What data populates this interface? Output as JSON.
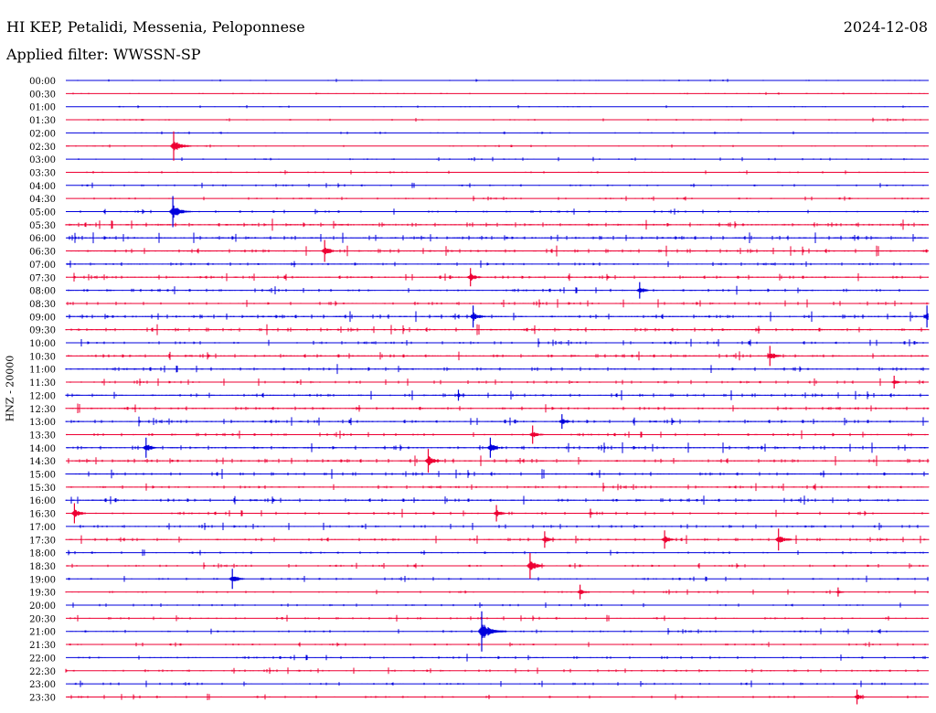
{
  "header": {
    "station": "HI KEP, Petalidi, Messenia, Peloponnese",
    "date": "2024-12-08",
    "filter": "Applied filter: WWSSN-SP"
  },
  "chart_data": {
    "type": "helicorder",
    "channel_label": "HNZ - 20000",
    "colors": [
      "#0000dd",
      "#ee0033"
    ],
    "rows": [
      "00:00",
      "00:30",
      "01:00",
      "01:30",
      "02:00",
      "02:30",
      "03:00",
      "03:30",
      "04:00",
      "04:30",
      "05:00",
      "05:30",
      "06:00",
      "06:30",
      "07:00",
      "07:30",
      "08:00",
      "08:30",
      "09:00",
      "09:30",
      "10:00",
      "10:30",
      "11:00",
      "11:30",
      "12:00",
      "12:30",
      "13:00",
      "13:30",
      "14:00",
      "14:30",
      "15:00",
      "15:30",
      "16:00",
      "16:30",
      "17:00",
      "17:30",
      "18:00",
      "18:30",
      "19:00",
      "19:30",
      "20:00",
      "20:30",
      "21:00",
      "21:30",
      "22:00",
      "22:30",
      "23:00",
      "23:30"
    ],
    "noise": [
      0.3,
      0.3,
      0.3,
      0.4,
      0.3,
      0.3,
      0.4,
      0.4,
      0.5,
      0.5,
      0.6,
      1.1,
      1.0,
      1.0,
      0.8,
      0.8,
      0.8,
      0.8,
      1.0,
      1.0,
      0.8,
      0.9,
      0.9,
      0.7,
      0.9,
      0.9,
      0.9,
      0.8,
      1.0,
      1.0,
      0.9,
      0.8,
      0.9,
      0.8,
      0.7,
      0.8,
      0.6,
      0.6,
      0.6,
      0.5,
      0.5,
      0.6,
      0.6,
      0.5,
      0.7,
      0.6,
      0.6,
      0.6
    ],
    "events": [
      {
        "row": 5,
        "t": 0.125,
        "amp": 16
      },
      {
        "row": 10,
        "t": 0.124,
        "amp": 17
      },
      {
        "row": 13,
        "t": 0.3,
        "amp": 12
      },
      {
        "row": 15,
        "t": 0.469,
        "amp": 10
      },
      {
        "row": 16,
        "t": 0.665,
        "amp": 9
      },
      {
        "row": 18,
        "t": 0.472,
        "amp": 12
      },
      {
        "row": 18,
        "t": 0.998,
        "amp": 12
      },
      {
        "row": 21,
        "t": 0.816,
        "amp": 11
      },
      {
        "row": 23,
        "t": 0.96,
        "amp": 7
      },
      {
        "row": 24,
        "t": 0.455,
        "amp": 6
      },
      {
        "row": 26,
        "t": 0.575,
        "amp": 8
      },
      {
        "row": 27,
        "t": 0.541,
        "amp": 10
      },
      {
        "row": 28,
        "t": 0.093,
        "amp": 11
      },
      {
        "row": 28,
        "t": 0.492,
        "amp": 11
      },
      {
        "row": 29,
        "t": 0.42,
        "amp": 13
      },
      {
        "row": 33,
        "t": 0.01,
        "amp": 11
      },
      {
        "row": 33,
        "t": 0.499,
        "amp": 9
      },
      {
        "row": 33,
        "t": 0.608,
        "amp": 5
      },
      {
        "row": 35,
        "t": 0.555,
        "amp": 9
      },
      {
        "row": 35,
        "t": 0.694,
        "amp": 10
      },
      {
        "row": 35,
        "t": 0.826,
        "amp": 12
      },
      {
        "row": 37,
        "t": 0.538,
        "amp": 14
      },
      {
        "row": 38,
        "t": 0.193,
        "amp": 11
      },
      {
        "row": 39,
        "t": 0.596,
        "amp": 8
      },
      {
        "row": 39,
        "t": 0.895,
        "amp": 5
      },
      {
        "row": 42,
        "t": 0.482,
        "amp": 22
      },
      {
        "row": 47,
        "t": 0.917,
        "amp": 8
      }
    ]
  }
}
